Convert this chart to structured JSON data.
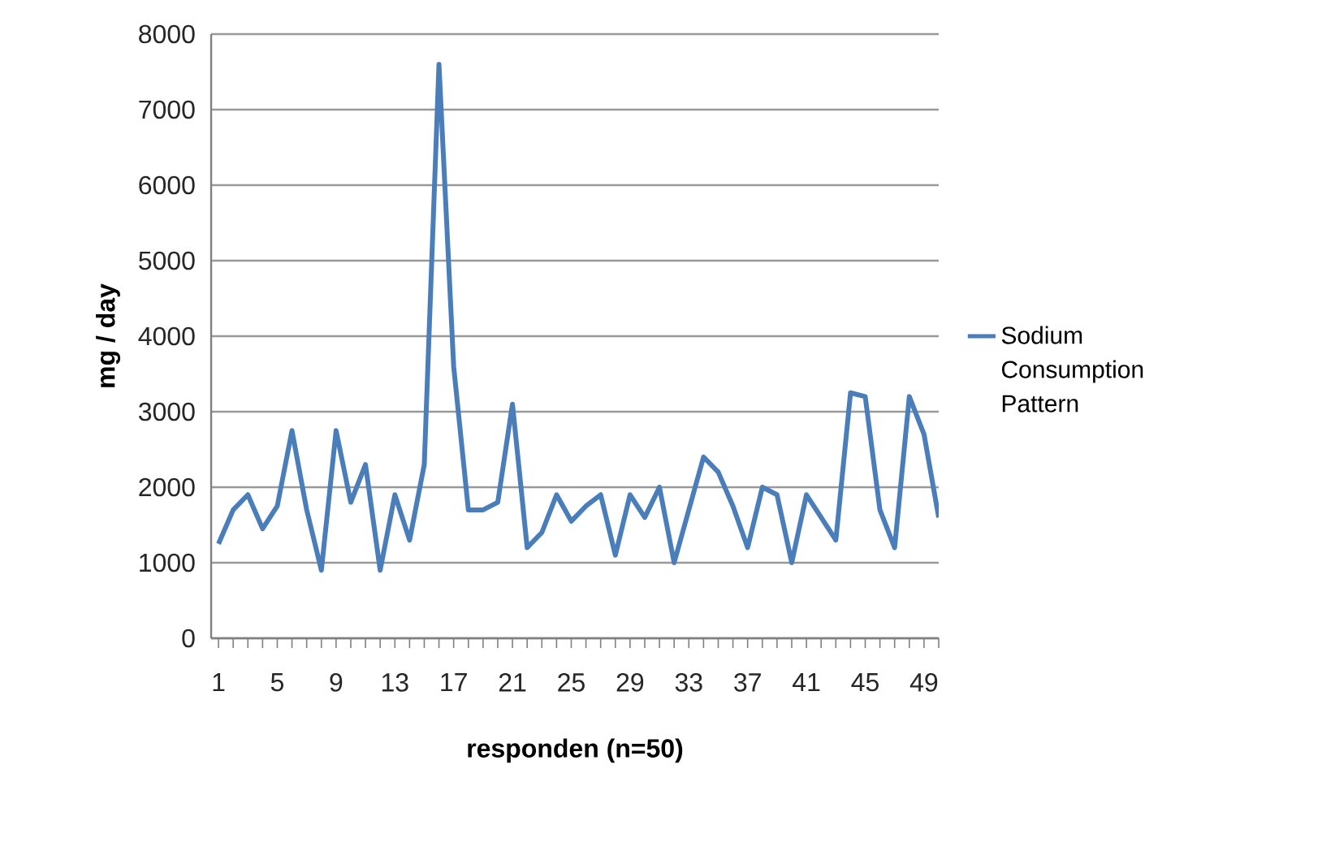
{
  "chart_data": {
    "type": "line",
    "xlabel": "responden (n=50)",
    "ylabel": "mg / day",
    "categories": [
      "1",
      null,
      null,
      null,
      "5",
      null,
      null,
      null,
      "9",
      null,
      null,
      null,
      "13",
      null,
      null,
      null,
      "17",
      null,
      null,
      null,
      "21",
      null,
      null,
      null,
      "25",
      null,
      null,
      null,
      "29",
      null,
      null,
      null,
      "33",
      null,
      null,
      null,
      "37",
      null,
      null,
      null,
      "41",
      null,
      null,
      null,
      "45",
      null,
      null,
      null,
      "49",
      null
    ],
    "series": [
      {
        "name": "Sodium Consumption Pattern",
        "color": "#4a7ebb",
        "values": [
          1250,
          1700,
          1900,
          1450,
          1750,
          2750,
          1700,
          900,
          2750,
          1800,
          2300,
          900,
          1900,
          1300,
          2300,
          7600,
          3600,
          1700,
          1700,
          1800,
          3100,
          1200,
          1400,
          1900,
          1550,
          1750,
          1900,
          1100,
          1900,
          1600,
          2000,
          1000,
          1700,
          2400,
          2200,
          1750,
          1200,
          2000,
          1900,
          1000,
          1900,
          1600,
          1300,
          3250,
          3200,
          1700,
          1200,
          3200,
          2700,
          1600
        ]
      }
    ],
    "ylim": [
      0,
      8000
    ],
    "yticks": [
      0,
      1000,
      2000,
      3000,
      4000,
      5000,
      6000,
      7000,
      8000
    ],
    "grid": "y",
    "legend": "right",
    "line_style": "solid",
    "marker": "none"
  }
}
